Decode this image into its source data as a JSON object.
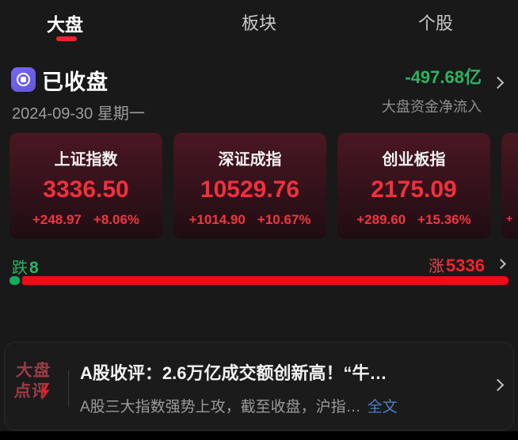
{
  "tabs": {
    "market": "大盘",
    "sectors": "板块",
    "stocks": "个股"
  },
  "header": {
    "status": "已收盘",
    "date": "2024-09-30 星期一",
    "net_inflow_value": "-497.68亿",
    "net_inflow_label": "大盘资金净流入"
  },
  "index_cards": [
    {
      "name": "上证指数",
      "value": "3336.50",
      "change": "+248.97",
      "change_pct": "+8.06%"
    },
    {
      "name": "深证成指",
      "value": "10529.76",
      "change": "+1014.90",
      "change_pct": "+10.67%"
    },
    {
      "name": "创业板指",
      "value": "2175.09",
      "change": "+289.60",
      "change_pct": "+15.36%"
    }
  ],
  "partial_card_hint": "+",
  "breadth": {
    "down_label": "跌",
    "down_count": "8",
    "up_label": "涨",
    "up_count": "5336",
    "down_width_pct": 2,
    "up_width_pct": 98
  },
  "news": {
    "logo_line1": "大盘",
    "logo_line2": "点评",
    "title": "A股收评：2.6万亿成交额创新高！“牛…",
    "summary": "A股三大指数强势上攻，截至收盘，沪指…",
    "more_label": "全文"
  },
  "colors": {
    "up_red": "#f5222d",
    "down_green": "#2bb561",
    "bar_red": "#ef0c18",
    "bar_green": "#0ab05c",
    "accent_purple": "#6a5fe0",
    "link_blue": "#4d7fc3",
    "logo_red": "#9c3b44"
  }
}
